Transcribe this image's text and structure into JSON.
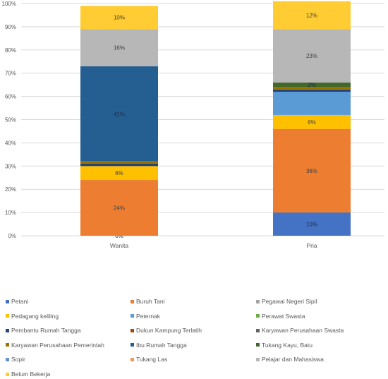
{
  "chart_data": {
    "type": "bar",
    "stacked": true,
    "categories": [
      "Wanita",
      "Pria"
    ],
    "ylim": [
      0,
      1
    ],
    "yticks": [
      "0%",
      "10%",
      "20%",
      "30%",
      "40%",
      "50%",
      "60%",
      "70%",
      "80%",
      "90%",
      "100%"
    ],
    "grid": true,
    "legend_position": "bottom",
    "series": [
      {
        "name": "Petani",
        "color": "#4472C4",
        "values": [
          0.0,
          0.1
        ],
        "labels": [
          "0%",
          "10%"
        ]
      },
      {
        "name": "Buruh Tani",
        "color": "#ED7D31",
        "values": [
          0.24,
          0.36
        ],
        "labels": [
          "24%",
          "36%"
        ]
      },
      {
        "name": "Pegawai Negeri Sipil",
        "color": "#A5A5A5",
        "values": [
          0.0,
          0.0
        ],
        "labels": [
          "",
          ""
        ]
      },
      {
        "name": "Pedagang keliling",
        "color": "#FFC000",
        "values": [
          0.06,
          0.06
        ],
        "labels": [
          "6%",
          "6%"
        ]
      },
      {
        "name": "Peternak",
        "color": "#5B9BD5",
        "values": [
          0.0,
          0.1
        ],
        "labels": [
          "",
          ""
        ]
      },
      {
        "name": "Perawat Swasta",
        "color": "#70AD47",
        "values": [
          0.0,
          0.0
        ],
        "labels": [
          "",
          ""
        ]
      },
      {
        "name": "Pembantu Rumah Tangga",
        "color": "#264478",
        "values": [
          0.01,
          0.01
        ],
        "labels": [
          "",
          ""
        ]
      },
      {
        "name": "Dukun Kampung Terlatih",
        "color": "#9E480E",
        "values": [
          0.0,
          0.0
        ],
        "labels": [
          "",
          ""
        ]
      },
      {
        "name": "Karyawan Perusahaan Swasta",
        "color": "#636363",
        "values": [
          0.0,
          0.0
        ],
        "labels": [
          "",
          ""
        ]
      },
      {
        "name": "Karyawan Perusahaan Pemerintah",
        "color": "#997300",
        "values": [
          0.01,
          0.01
        ],
        "labels": [
          "",
          ""
        ]
      },
      {
        "name": "Ibu Rumah Tangga",
        "color": "#255E91",
        "values": [
          0.41,
          0.0
        ],
        "labels": [
          "41%",
          ""
        ]
      },
      {
        "name": "Tukang Kayu, Batu",
        "color": "#43682B",
        "values": [
          0.0,
          0.02
        ],
        "labels": [
          "",
          "2%"
        ]
      },
      {
        "name": "Sopir",
        "color": "#698ED0",
        "values": [
          0.0,
          0.0
        ],
        "labels": [
          "",
          ""
        ]
      },
      {
        "name": "Tukang Las",
        "color": "#F1975A",
        "values": [
          0.0,
          0.0
        ],
        "labels": [
          "",
          ""
        ]
      },
      {
        "name": "Pelajar dan Mahasiswa",
        "color": "#B7B7B7",
        "values": [
          0.16,
          0.23
        ],
        "labels": [
          "16%",
          "23%"
        ]
      },
      {
        "name": "Belum Bekerja",
        "color": "#FFCD33",
        "values": [
          0.1,
          0.12
        ],
        "labels": [
          "10%",
          "12%"
        ]
      }
    ]
  }
}
